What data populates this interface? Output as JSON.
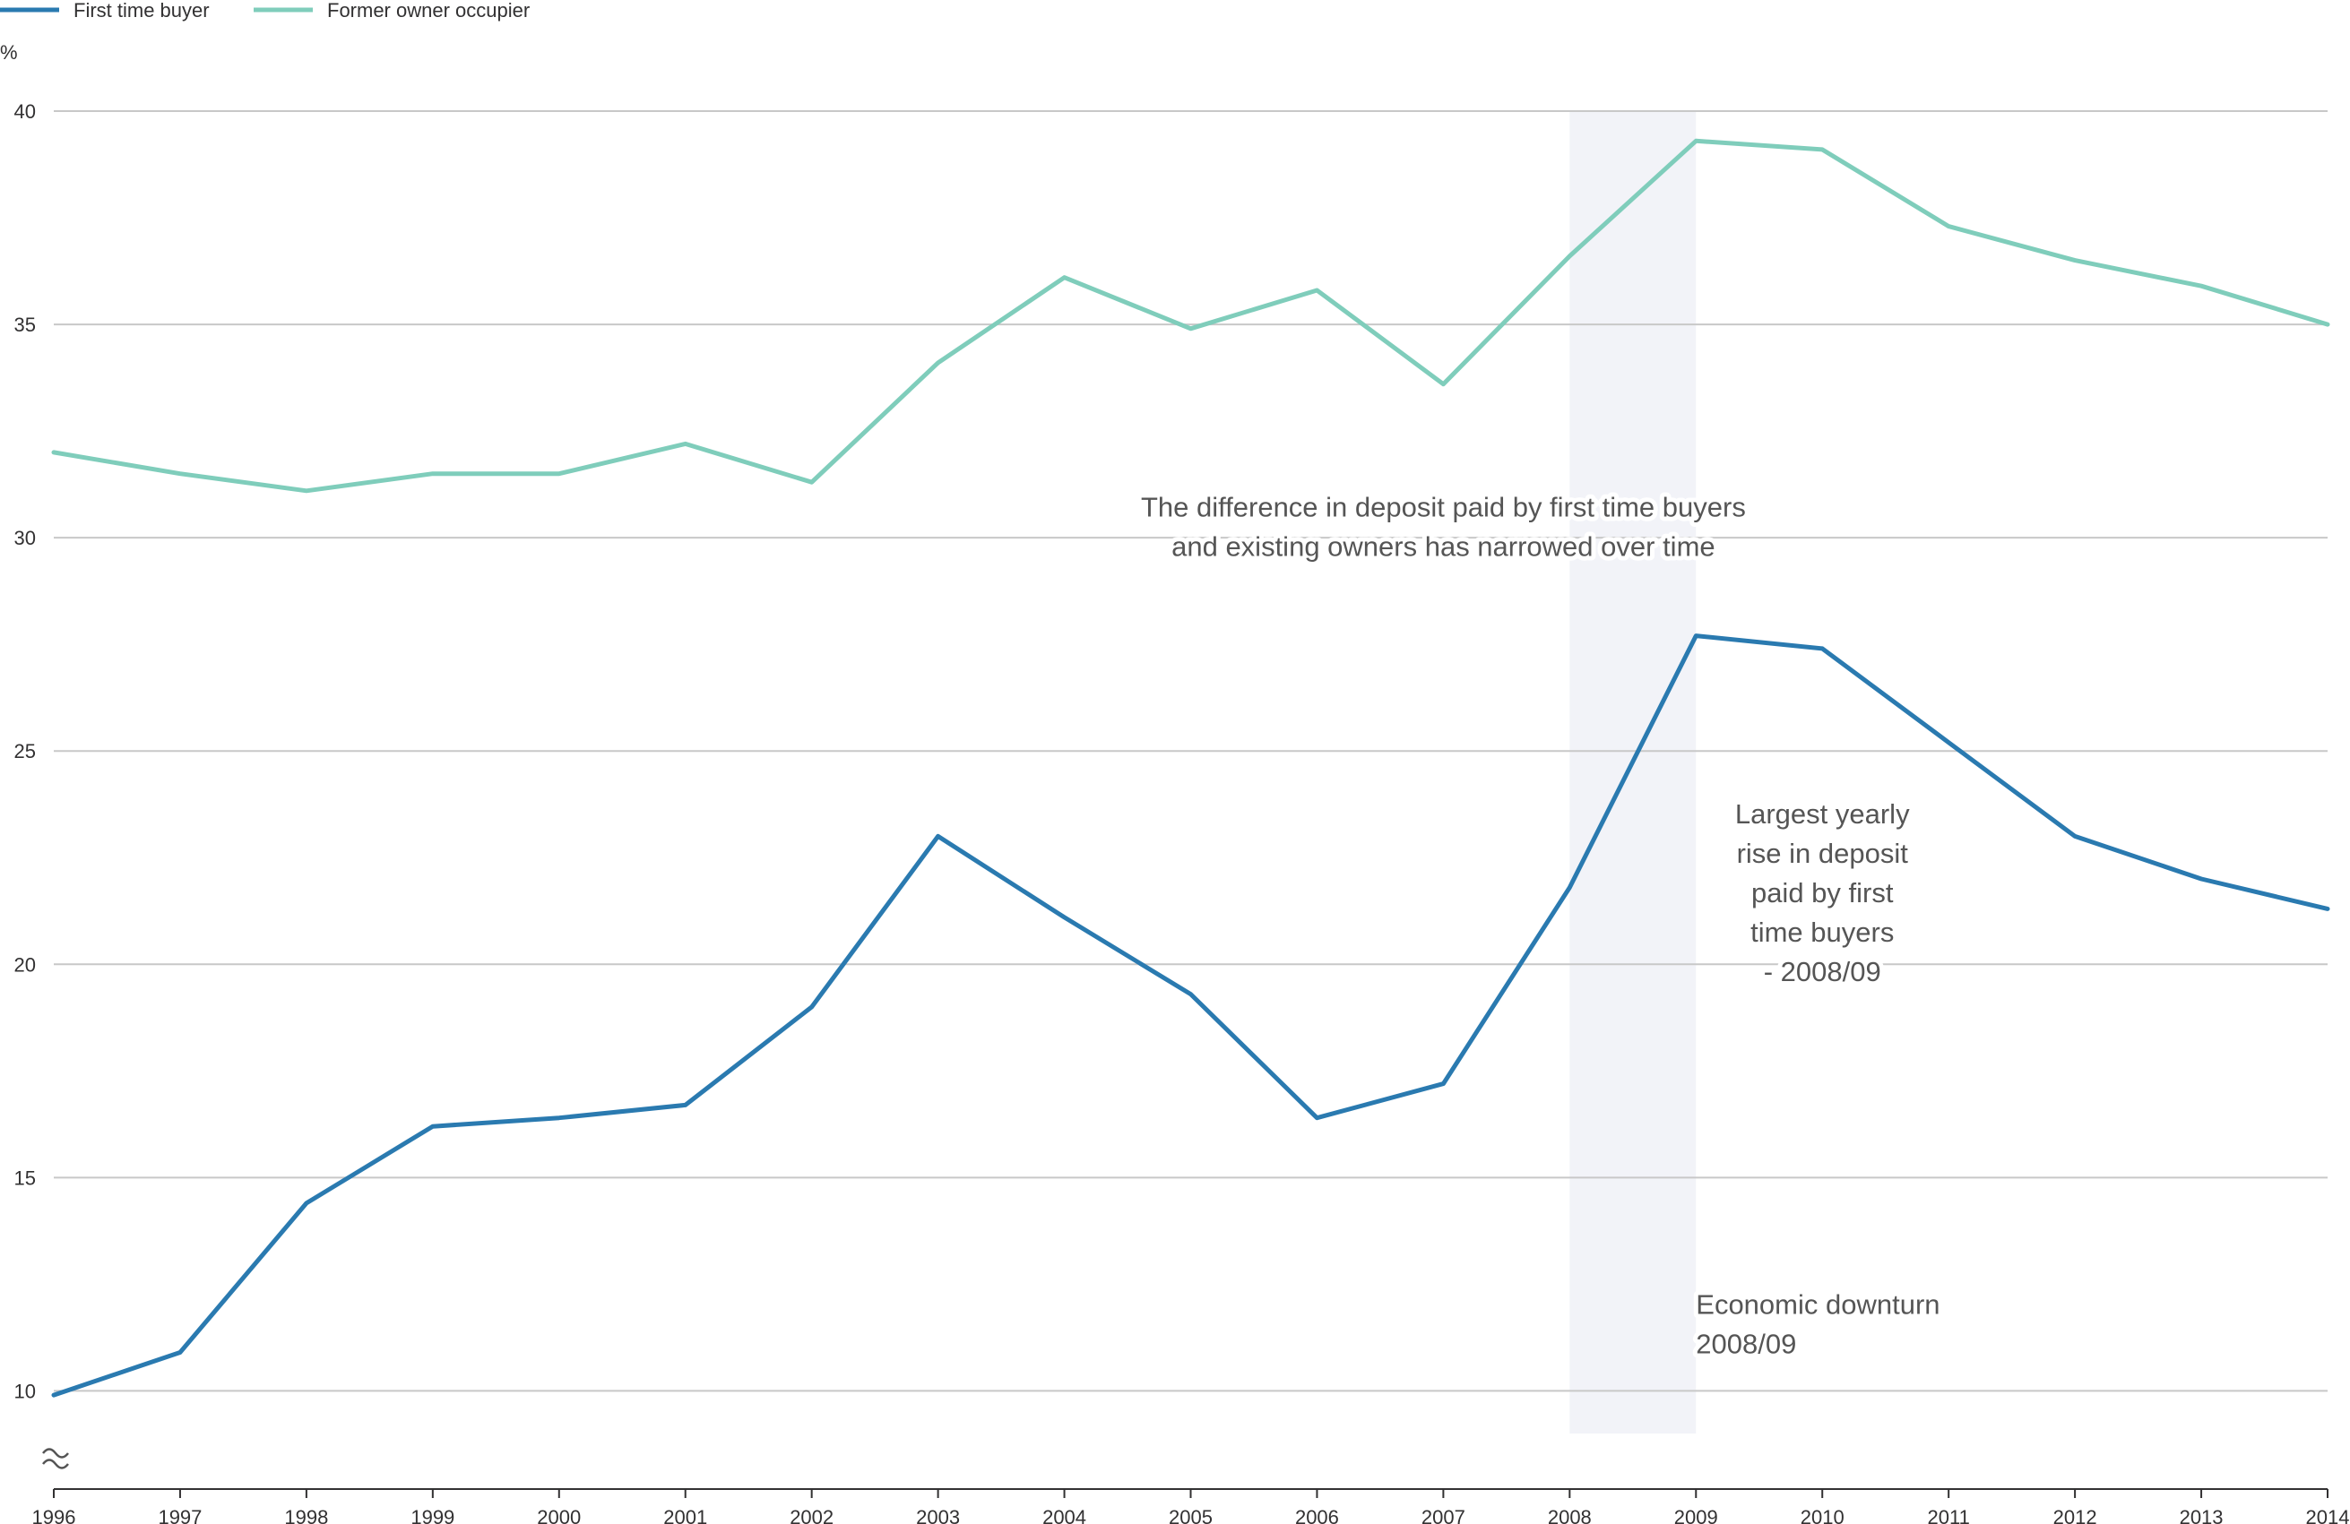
{
  "chart_data": {
    "type": "line",
    "x": [
      1996,
      1997,
      1998,
      1999,
      2000,
      2001,
      2002,
      2003,
      2004,
      2005,
      2006,
      2007,
      2008,
      2009,
      2010,
      2011,
      2012,
      2013,
      2014
    ],
    "x_tick_labels": [
      "1996",
      "1997",
      "1998",
      "1999",
      "2000",
      "2001",
      "2002",
      "2003",
      "2004",
      "2005",
      "2006",
      "2007",
      "2008",
      "2009",
      "2010",
      "2011",
      "2012",
      "2013",
      "2014"
    ],
    "series": [
      {
        "name": "First time buyer",
        "color": "#2a7ab0",
        "values": [
          9.9,
          10.9,
          14.4,
          16.2,
          16.4,
          16.7,
          19.0,
          23.0,
          21.1,
          19.3,
          16.4,
          17.2,
          21.8,
          27.7,
          27.4,
          25.2,
          23.0,
          22.0,
          21.3
        ]
      },
      {
        "name": "Former owner occupier",
        "color": "#7fcdbb",
        "values": [
          32.0,
          31.5,
          31.1,
          31.5,
          31.5,
          32.2,
          31.3,
          34.1,
          36.1,
          34.9,
          35.8,
          33.6,
          36.6,
          39.3,
          39.1,
          37.3,
          36.5,
          35.9,
          35.0
        ]
      }
    ],
    "y_ticks": [
      10,
      15,
      20,
      25,
      30,
      35,
      40
    ],
    "y_tick_labels": [
      "10",
      "15",
      "20",
      "25",
      "30",
      "35",
      "40"
    ],
    "ylim": [
      9,
      40
    ],
    "xlim": [
      1996,
      2014
    ],
    "ylabel": "%",
    "title": "",
    "xlabel": "",
    "grid": true,
    "legend_position": "top-left",
    "axis_break": true,
    "shaded_region": {
      "x_start": 2008,
      "x_end": 2009,
      "color": "#f2f3f8"
    },
    "annotations": [
      {
        "lines": [
          "The difference in deposit paid by first time buyers",
          "and existing owners has narrowed over time"
        ],
        "x": 2007.0,
        "y": 30.5,
        "anchor": "middle"
      },
      {
        "lines": [
          "Largest yearly",
          "rise in deposit",
          "paid by first",
          "time buyers",
          "- 2008/09"
        ],
        "x": 2010.0,
        "y": 23.3,
        "anchor": "middle"
      },
      {
        "lines": [
          "Economic downturn",
          "2008/09"
        ],
        "x": 2009.0,
        "y": 11.8,
        "anchor": "start"
      }
    ]
  }
}
